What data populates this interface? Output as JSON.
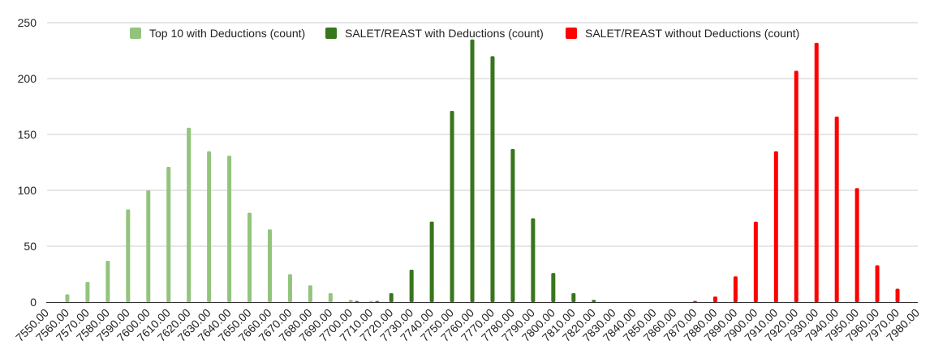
{
  "chart_data": {
    "type": "bar",
    "title": "",
    "xlabel": "",
    "ylabel": "",
    "ylim": [
      0,
      250
    ],
    "yticks": [
      0,
      50,
      100,
      150,
      200,
      250
    ],
    "grid": true,
    "legend_position": "top",
    "x": [
      "7550.00",
      "7560.00",
      "7570.00",
      "7580.00",
      "7590.00",
      "7600.00",
      "7610.00",
      "7620.00",
      "7630.00",
      "7640.00",
      "7650.00",
      "7660.00",
      "7670.00",
      "7680.00",
      "7690.00",
      "7700.00",
      "7710.00",
      "7720.00",
      "7730.00",
      "7740.00",
      "7750.00",
      "7760.00",
      "7770.00",
      "7780.00",
      "7790.00",
      "7800.00",
      "7810.00",
      "7820.00",
      "7830.00",
      "7840.00",
      "7850.00",
      "7860.00",
      "7870.00",
      "7880.00",
      "7890.00",
      "7900.00",
      "7910.00",
      "7920.00",
      "7930.00",
      "7940.00",
      "7950.00",
      "7960.00",
      "7970.00",
      "7980.00"
    ],
    "series": [
      {
        "name": "Top 10 with Deductions (count)",
        "color": "#93c47d",
        "points": [
          [
            7560,
            7
          ],
          [
            7570,
            18
          ],
          [
            7580,
            37
          ],
          [
            7590,
            83
          ],
          [
            7600,
            100
          ],
          [
            7610,
            121
          ],
          [
            7620,
            156
          ],
          [
            7630,
            135
          ],
          [
            7640,
            131
          ],
          [
            7650,
            80
          ],
          [
            7660,
            65
          ],
          [
            7670,
            25
          ],
          [
            7680,
            15
          ],
          [
            7690,
            8
          ],
          [
            7700,
            2
          ],
          [
            7710,
            1
          ]
        ]
      },
      {
        "name": "SALET/REAST with Deductions (count)",
        "color": "#38761d",
        "points": [
          [
            7703,
            1
          ],
          [
            7713,
            1
          ],
          [
            7720,
            8
          ],
          [
            7730,
            29
          ],
          [
            7740,
            72
          ],
          [
            7750,
            171
          ],
          [
            7760,
            235
          ],
          [
            7770,
            220
          ],
          [
            7780,
            137
          ],
          [
            7790,
            75
          ],
          [
            7800,
            26
          ],
          [
            7810,
            8
          ],
          [
            7820,
            2
          ]
        ]
      },
      {
        "name": "SALET/REAST without Deductions (count)",
        "color": "#ff0000",
        "points": [
          [
            7870,
            1
          ],
          [
            7880,
            5
          ],
          [
            7890,
            23
          ],
          [
            7900,
            72
          ],
          [
            7910,
            135
          ],
          [
            7920,
            207
          ],
          [
            7930,
            232
          ],
          [
            7940,
            166
          ],
          [
            7950,
            102
          ],
          [
            7960,
            33
          ],
          [
            7970,
            12
          ]
        ]
      }
    ]
  }
}
